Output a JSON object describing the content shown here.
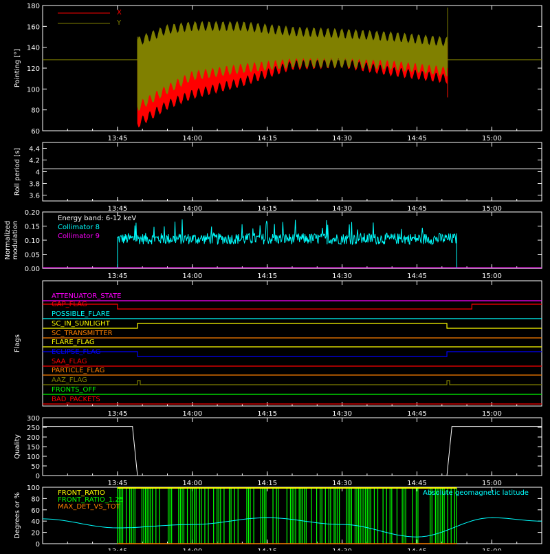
{
  "time_ticks": [
    "13:45",
    "14:00",
    "14:15",
    "14:30",
    "14:45",
    "15:00"
  ],
  "colors": {
    "x_series": "#ff0000",
    "y_series": "#808000",
    "collimator8": "#00ffff",
    "collimator9": "#ff00ff",
    "energy_band": "#ffffff",
    "front_ratio": "#ffff00",
    "front_ratio_125": "#00ff00",
    "max_det": "#ff8000",
    "geomag": "#00ffff"
  },
  "chart_data": [
    {
      "type": "line",
      "ylabel": "Pointing [°]",
      "ylim": [
        60,
        180
      ],
      "yticks": [
        60,
        80,
        100,
        120,
        140,
        160,
        180
      ],
      "xlim": [
        "13:30",
        "15:10"
      ],
      "legend": [
        "X",
        "Y"
      ],
      "series": [
        {
          "name": "X",
          "x": [
            "13:30",
            "13:48",
            "13:49",
            "13:55",
            "14:00",
            "14:10",
            "14:20",
            "14:30",
            "14:40",
            "14:51",
            "14:52",
            "15:10"
          ],
          "low": [
            128,
            128,
            62,
            80,
            90,
            102,
            118,
            120,
            112,
            105,
            128,
            128
          ],
          "high": [
            128,
            128,
            140,
            145,
            150,
            152,
            152,
            150,
            148,
            145,
            128,
            128
          ]
        },
        {
          "name": "Y",
          "x": [
            "13:30",
            "13:48",
            "13:49",
            "13:55",
            "14:00",
            "14:10",
            "14:20",
            "14:30",
            "14:40",
            "14:51",
            "14:52",
            "15:10"
          ],
          "low": [
            128,
            128,
            78,
            95,
            108,
            115,
            120,
            120,
            118,
            112,
            128,
            128
          ],
          "high": [
            128,
            128,
            150,
            162,
            165,
            165,
            160,
            158,
            155,
            150,
            128,
            128
          ]
        }
      ],
      "legend_placement": "top-left"
    },
    {
      "type": "line",
      "ylabel": "Roll period [s]",
      "ylim": [
        3.5,
        4.5
      ],
      "yticks": [
        3.6,
        3.8,
        4.0,
        4.2,
        4.4
      ],
      "xlim": [
        "13:30",
        "15:10"
      ],
      "series": [
        {
          "x": [
            "13:30",
            "15:10"
          ],
          "y": [
            4.05,
            4.05
          ]
        }
      ]
    },
    {
      "type": "line",
      "ylabel": "Normalized modulation",
      "ylim": [
        0,
        0.2
      ],
      "yticks": [
        "0.00",
        "0.05",
        "0.10",
        "0.15",
        "0.20"
      ],
      "xlim": [
        "13:30",
        "15:10"
      ],
      "annotation": "Energy band: 6-12 keV",
      "legend": [
        "Collimator 8",
        "Collimator 9"
      ],
      "series": [
        {
          "name": "Collimator 8",
          "x_start": "13:45",
          "x_end": "14:53",
          "mean": 0.105,
          "spread": 0.02
        },
        {
          "name": "Collimator 9",
          "x": [
            "13:30",
            "15:10"
          ],
          "y": [
            0,
            0
          ]
        }
      ],
      "legend_placement": "top-left"
    },
    {
      "type": "line",
      "ylabel": "Flags",
      "xlim": [
        "13:30",
        "15:10"
      ],
      "flags": [
        {
          "name": "ATTENUATOR_STATE",
          "color": "#ff00ff",
          "segments": [
            [
              "13:30",
              "15:10",
              0
            ]
          ]
        },
        {
          "name": "GAP_FLAG",
          "color": "#ff0000",
          "segments": [
            [
              "13:30",
              "13:45",
              1
            ],
            [
              "13:45",
              "14:56",
              0
            ],
            [
              "14:56",
              "15:10",
              1
            ]
          ]
        },
        {
          "name": "POSSIBLE_FLARE",
          "color": "#00ffff",
          "segments": [
            [
              "13:30",
              "15:10",
              0
            ]
          ]
        },
        {
          "name": "SC_IN_SUNLIGHT",
          "color": "#ffff00",
          "segments": [
            [
              "13:30",
              "13:49",
              0
            ],
            [
              "13:49",
              "14:51",
              1
            ],
            [
              "14:51",
              "15:10",
              0
            ]
          ]
        },
        {
          "name": "SC_TRANSMITTER",
          "color": "#ff8000",
          "segments": [
            [
              "13:30",
              "15:10",
              0
            ]
          ]
        },
        {
          "name": "FLARE_FLAG",
          "color": "#ffff00",
          "segments": [
            [
              "13:30",
              "15:10",
              0
            ]
          ]
        },
        {
          "name": "ECLIPSE_FLAG",
          "color": "#0000ff",
          "segments": [
            [
              "13:30",
              "13:49",
              1
            ],
            [
              "13:49",
              "14:51",
              0
            ],
            [
              "14:51",
              "15:10",
              1
            ]
          ]
        },
        {
          "name": "SAA_FLAG",
          "color": "#ff0000",
          "segments": [
            [
              "13:30",
              "15:10",
              0
            ]
          ]
        },
        {
          "name": "PARTICLE_FLAG",
          "color": "#ff8000",
          "segments": [
            [
              "13:30",
              "15:10",
              0
            ]
          ]
        },
        {
          "name": "AAZ_FLAG",
          "color": "#808000",
          "pulses": [
            "13:49",
            "14:51"
          ]
        },
        {
          "name": "FRONTS_OFF",
          "color": "#00ff00",
          "segments": [
            [
              "13:30",
              "15:10",
              0
            ]
          ]
        },
        {
          "name": "BAD_PACKETS",
          "color": "#ff0000",
          "segments": [
            [
              "13:30",
              "15:10",
              0
            ]
          ]
        }
      ]
    },
    {
      "type": "line",
      "ylabel": "Quality",
      "ylim": [
        0,
        300
      ],
      "yticks": [
        0,
        50,
        100,
        150,
        200,
        250,
        300
      ],
      "xlim": [
        "13:30",
        "15:10"
      ],
      "series": [
        {
          "x": [
            "13:30",
            "13:48",
            "13:49",
            "14:51",
            "14:52",
            "15:10"
          ],
          "y": [
            255,
            255,
            0,
            0,
            255,
            255
          ]
        }
      ]
    },
    {
      "type": "line",
      "ylabel": "Degrees or %",
      "ylim": [
        0,
        100
      ],
      "yticks": [
        0,
        20,
        40,
        60,
        80,
        100
      ],
      "xlim": [
        "13:30",
        "15:10"
      ],
      "legend": [
        "FRONT_RATIO",
        "FRONT_RATIO_1.25",
        "MAX_DET_VS_TOT",
        "Absolute geomagnetic latitude"
      ],
      "series": [
        {
          "name": "FRONT_RATIO",
          "x_start": "13:45",
          "x_end": "14:53",
          "level": 100
        },
        {
          "name": "FRONT_RATIO_1.25",
          "x_start": "13:45",
          "x_end": "14:53",
          "level": 100
        },
        {
          "name": "MAX_DET_VS_TOT",
          "x": [
            "13:45",
            "14:53"
          ],
          "y": [
            0,
            0
          ]
        },
        {
          "name": "Absolute geomagnetic latitude",
          "x": [
            "13:30",
            "13:45",
            "14:00",
            "14:15",
            "14:30",
            "14:45",
            "15:00",
            "15:10"
          ],
          "y": [
            44,
            28,
            34,
            46,
            34,
            12,
            46,
            40
          ]
        }
      ],
      "legend_placement": "top-left"
    }
  ]
}
